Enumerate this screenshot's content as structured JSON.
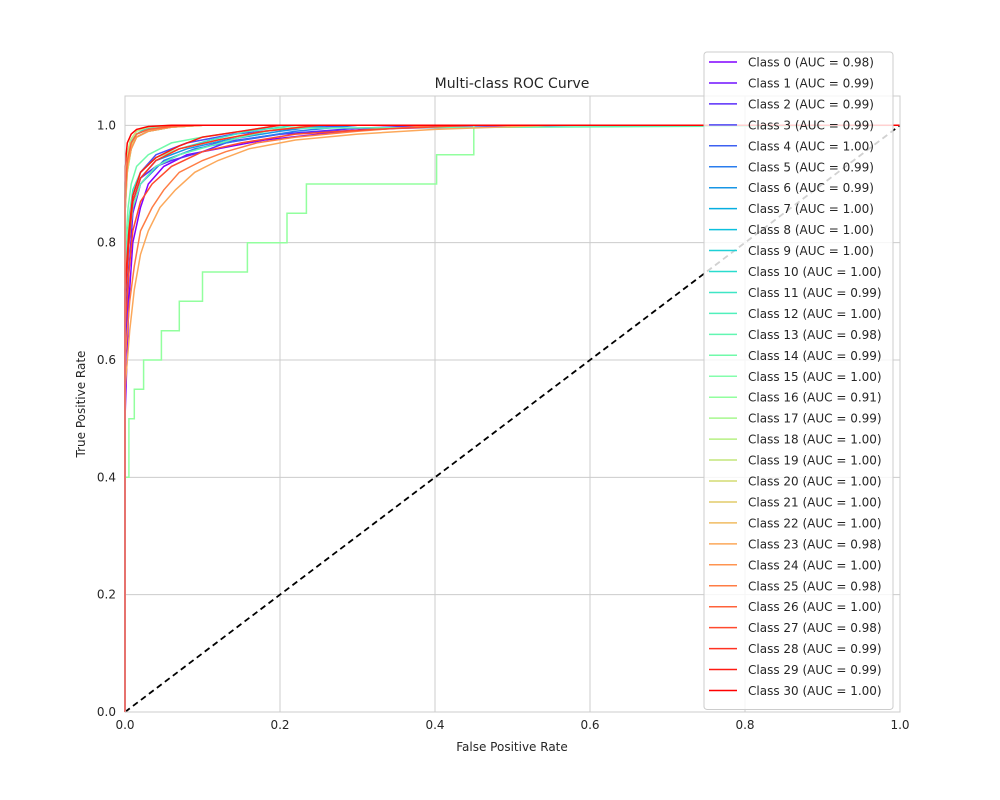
{
  "chart_data": {
    "type": "line",
    "title": "Multi-class ROC Curve",
    "xlabel": "False Positive Rate",
    "ylabel": "True Positive Rate",
    "xlim": [
      0.0,
      1.0
    ],
    "ylim": [
      0.0,
      1.05
    ],
    "xticks": [
      "0.0",
      "0.2",
      "0.4",
      "0.6",
      "0.8",
      "1.0"
    ],
    "yticks": [
      "0.0",
      "0.2",
      "0.4",
      "0.6",
      "0.8",
      "1.0"
    ],
    "grid": true,
    "legend_position": "upper right",
    "diagonal": {
      "x": [
        0,
        1
      ],
      "y": [
        0,
        1
      ],
      "color": "#000000",
      "style": "dashed"
    },
    "series": [
      {
        "name": "Class 0 (AUC = 0.98)",
        "color": "#8000ff",
        "x": [
          0,
          0.0,
          0.005,
          0.01,
          0.02,
          0.03,
          0.05,
          0.08,
          0.12,
          0.18,
          0.25,
          0.32,
          0.45,
          1.0
        ],
        "y": [
          0,
          0.5,
          0.7,
          0.8,
          0.86,
          0.9,
          0.93,
          0.95,
          0.96,
          0.975,
          0.985,
          0.995,
          1.0,
          1.0
        ]
      },
      {
        "name": "Class 1 (AUC = 0.99)",
        "color": "#7010ff",
        "x": [
          0,
          0.0,
          0.005,
          0.01,
          0.02,
          0.04,
          0.07,
          0.12,
          0.2,
          0.35,
          0.58,
          1.0
        ],
        "y": [
          0,
          0.6,
          0.75,
          0.85,
          0.9,
          0.93,
          0.95,
          0.97,
          0.985,
          0.995,
          1.0,
          1.0
        ]
      },
      {
        "name": "Class 2 (AUC = 0.99)",
        "color": "#5a2ef9",
        "x": [
          0,
          0.0,
          0.005,
          0.01,
          0.02,
          0.04,
          0.06,
          0.1,
          0.13,
          0.2,
          0.3,
          0.4,
          1.0
        ],
        "y": [
          0,
          0.65,
          0.8,
          0.87,
          0.91,
          0.93,
          0.94,
          0.955,
          0.97,
          0.985,
          0.995,
          1.0,
          1.0
        ]
      },
      {
        "name": "Class 3 (AUC = 0.99)",
        "color": "#4c4cf6",
        "x": [
          0,
          0.0,
          0.005,
          0.01,
          0.02,
          0.04,
          0.08,
          0.14,
          0.22,
          0.3,
          1.0
        ],
        "y": [
          0,
          0.7,
          0.82,
          0.88,
          0.92,
          0.95,
          0.97,
          0.985,
          0.995,
          1.0,
          1.0
        ]
      },
      {
        "name": "Class 4 (AUC = 1.00)",
        "color": "#3e60f1",
        "x": [
          0,
          0.0,
          0.003,
          0.008,
          0.015,
          0.03,
          0.06,
          0.1,
          1.0
        ],
        "y": [
          0,
          0.85,
          0.93,
          0.96,
          0.98,
          0.99,
          0.997,
          1.0,
          1.0
        ]
      },
      {
        "name": "Class 5 (AUC = 0.99)",
        "color": "#2a7cee",
        "x": [
          0,
          0.0,
          0.005,
          0.01,
          0.02,
          0.05,
          0.09,
          0.15,
          0.22,
          0.3,
          1.0
        ],
        "y": [
          0,
          0.7,
          0.8,
          0.86,
          0.9,
          0.94,
          0.96,
          0.975,
          0.99,
          1.0,
          1.0
        ]
      },
      {
        "name": "Class 6 (AUC = 0.99)",
        "color": "#1896e5",
        "x": [
          0,
          0.0,
          0.005,
          0.01,
          0.02,
          0.04,
          0.08,
          0.13,
          0.2,
          0.26,
          1.0
        ],
        "y": [
          0,
          0.72,
          0.82,
          0.87,
          0.91,
          0.94,
          0.96,
          0.975,
          0.99,
          1.0,
          1.0
        ]
      },
      {
        "name": "Class 7 (AUC = 1.00)",
        "color": "#06aee0",
        "x": [
          0,
          0.0,
          0.003,
          0.008,
          0.015,
          0.03,
          0.06,
          0.1,
          1.0
        ],
        "y": [
          0,
          0.88,
          0.94,
          0.97,
          0.985,
          0.993,
          0.998,
          1.0,
          1.0
        ]
      },
      {
        "name": "Class 8 (AUC = 1.00)",
        "color": "#0cc0dd",
        "x": [
          0,
          0.0,
          0.003,
          0.008,
          0.015,
          0.03,
          0.05,
          0.09,
          1.0
        ],
        "y": [
          0,
          0.86,
          0.93,
          0.965,
          0.98,
          0.99,
          0.997,
          1.0,
          1.0
        ]
      },
      {
        "name": "Class 9 (AUC = 1.00)",
        "color": "#1ed0d6",
        "x": [
          0,
          0.0,
          0.003,
          0.007,
          0.015,
          0.025,
          0.05,
          0.08,
          1.0
        ],
        "y": [
          0,
          0.9,
          0.95,
          0.97,
          0.985,
          0.993,
          0.998,
          1.0,
          1.0
        ]
      },
      {
        "name": "Class 10 (AUC = 1.00)",
        "color": "#2adcce",
        "x": [
          0,
          0.0,
          0.003,
          0.007,
          0.015,
          0.03,
          0.06,
          0.1,
          1.0
        ],
        "y": [
          0,
          0.87,
          0.93,
          0.965,
          0.98,
          0.99,
          0.997,
          1.0,
          1.0
        ]
      },
      {
        "name": "Class 11 (AUC = 0.99)",
        "color": "#3ee6c5",
        "x": [
          0,
          0.0,
          0.005,
          0.01,
          0.02,
          0.04,
          0.07,
          0.11,
          0.16,
          0.22,
          1.0
        ],
        "y": [
          0,
          0.75,
          0.84,
          0.89,
          0.92,
          0.945,
          0.96,
          0.975,
          0.99,
          1.0,
          1.0
        ]
      },
      {
        "name": "Class 12 (AUC = 1.00)",
        "color": "#50f0bc",
        "x": [
          0,
          0.0,
          0.003,
          0.008,
          0.015,
          0.03,
          0.06,
          0.1,
          1.0
        ],
        "y": [
          0,
          0.85,
          0.92,
          0.96,
          0.98,
          0.99,
          0.997,
          1.0,
          1.0
        ]
      },
      {
        "name": "Class 13 (AUC = 0.98)",
        "color": "#62f6b2",
        "x": [
          0,
          0.0,
          0.005,
          0.01,
          0.02,
          0.04,
          0.07,
          0.11,
          0.15,
          0.2,
          1.0
        ],
        "y": [
          0,
          0.7,
          0.8,
          0.86,
          0.9,
          0.93,
          0.95,
          0.965,
          0.98,
          0.995,
          1.0
        ]
      },
      {
        "name": "Class 14 (AUC = 0.99)",
        "color": "#70faaa",
        "x": [
          0,
          0.0,
          0.004,
          0.008,
          0.015,
          0.03,
          0.06,
          0.1,
          0.15,
          0.2,
          1.0
        ],
        "y": [
          0,
          0.78,
          0.86,
          0.9,
          0.93,
          0.95,
          0.97,
          0.98,
          0.99,
          1.0,
          1.0
        ]
      },
      {
        "name": "Class 15 (AUC = 1.00)",
        "color": "#84feac",
        "x": [
          0,
          0.0,
          0.003,
          0.007,
          0.015,
          0.03,
          0.06,
          1.0
        ],
        "y": [
          0,
          0.9,
          0.95,
          0.975,
          0.99,
          0.997,
          1.0,
          1.0
        ]
      },
      {
        "name": "Class 16 (AUC = 0.91)",
        "color": "#92ff9e",
        "x": [
          0,
          0.0,
          0.005,
          0.005,
          0.012,
          0.012,
          0.024,
          0.024,
          0.047,
          0.047,
          0.07,
          0.07,
          0.1,
          0.1,
          0.158,
          0.158,
          0.209,
          0.209,
          0.234,
          0.234,
          0.402,
          0.402,
          0.45,
          0.45,
          1.0
        ],
        "y": [
          0,
          0.4,
          0.4,
          0.5,
          0.5,
          0.55,
          0.55,
          0.6,
          0.6,
          0.65,
          0.65,
          0.7,
          0.7,
          0.75,
          0.75,
          0.8,
          0.8,
          0.85,
          0.85,
          0.9,
          0.9,
          0.95,
          0.95,
          1.0,
          1.0
        ]
      },
      {
        "name": "Class 17 (AUC = 0.99)",
        "color": "#a6f88e",
        "x": [
          0,
          0.0,
          0.005,
          0.01,
          0.02,
          0.04,
          0.07,
          0.12,
          0.18,
          0.24,
          1.0
        ],
        "y": [
          0,
          0.72,
          0.83,
          0.88,
          0.92,
          0.945,
          0.96,
          0.975,
          0.99,
          1.0,
          1.0
        ]
      },
      {
        "name": "Class 18 (AUC = 1.00)",
        "color": "#b6f083",
        "x": [
          0,
          0.0,
          0.003,
          0.008,
          0.015,
          0.03,
          0.06,
          0.1,
          1.0
        ],
        "y": [
          0,
          0.87,
          0.93,
          0.965,
          0.98,
          0.99,
          0.997,
          1.0,
          1.0
        ]
      },
      {
        "name": "Class 19 (AUC = 1.00)",
        "color": "#c4e67c",
        "x": [
          0,
          0.0,
          0.003,
          0.007,
          0.015,
          0.03,
          0.06,
          1.0
        ],
        "y": [
          0,
          0.9,
          0.95,
          0.975,
          0.99,
          0.997,
          1.0,
          1.0
        ]
      },
      {
        "name": "Class 20 (AUC = 1.00)",
        "color": "#d4dc72",
        "x": [
          0,
          0.0,
          0.003,
          0.008,
          0.015,
          0.03,
          0.05,
          0.09,
          1.0
        ],
        "y": [
          0,
          0.86,
          0.93,
          0.965,
          0.98,
          0.99,
          0.997,
          1.0,
          1.0
        ]
      },
      {
        "name": "Class 21 (AUC = 1.00)",
        "color": "#e2cc6a",
        "x": [
          0,
          0.0,
          0.003,
          0.008,
          0.015,
          0.03,
          0.06,
          0.1,
          1.0
        ],
        "y": [
          0,
          0.85,
          0.92,
          0.96,
          0.98,
          0.99,
          0.997,
          1.0,
          1.0
        ]
      },
      {
        "name": "Class 22 (AUC = 1.00)",
        "color": "#f0bc62",
        "x": [
          0,
          0.0,
          0.003,
          0.008,
          0.015,
          0.03,
          0.06,
          0.1,
          1.0
        ],
        "y": [
          0,
          0.88,
          0.94,
          0.97,
          0.985,
          0.993,
          0.998,
          1.0,
          1.0
        ]
      },
      {
        "name": "Class 23 (AUC = 0.98)",
        "color": "#fca85a",
        "x": [
          0,
          0.0,
          0.006,
          0.012,
          0.02,
          0.03,
          0.045,
          0.065,
          0.09,
          0.12,
          0.16,
          0.22,
          0.3,
          0.4,
          0.55,
          1.0
        ],
        "y": [
          0,
          0.55,
          0.65,
          0.72,
          0.78,
          0.82,
          0.86,
          0.89,
          0.92,
          0.94,
          0.96,
          0.975,
          0.985,
          0.993,
          1.0,
          1.0
        ]
      },
      {
        "name": "Class 24 (AUC = 1.00)",
        "color": "#ff9450",
        "x": [
          0,
          0.0,
          0.003,
          0.008,
          0.015,
          0.03,
          0.06,
          0.1,
          1.0
        ],
        "y": [
          0,
          0.86,
          0.93,
          0.96,
          0.98,
          0.99,
          0.997,
          1.0,
          1.0
        ]
      },
      {
        "name": "Class 25 (AUC = 0.98)",
        "color": "#ff7c44",
        "x": [
          0,
          0.0,
          0.006,
          0.012,
          0.02,
          0.035,
          0.05,
          0.07,
          0.1,
          0.13,
          0.17,
          0.22,
          0.3,
          0.4,
          1.0
        ],
        "y": [
          0,
          0.6,
          0.7,
          0.76,
          0.82,
          0.86,
          0.89,
          0.92,
          0.94,
          0.955,
          0.97,
          0.98,
          0.99,
          1.0,
          1.0
        ]
      },
      {
        "name": "Class 26 (AUC = 1.00)",
        "color": "#ff623a",
        "x": [
          0,
          0.0,
          0.003,
          0.008,
          0.015,
          0.03,
          0.06,
          0.1,
          1.0
        ],
        "y": [
          0,
          0.88,
          0.94,
          0.97,
          0.985,
          0.993,
          0.998,
          1.0,
          1.0
        ]
      },
      {
        "name": "Class 27 (AUC = 0.98)",
        "color": "#ff4a2e",
        "x": [
          0,
          0.0,
          0.005,
          0.01,
          0.02,
          0.035,
          0.06,
          0.1,
          0.15,
          0.22,
          0.32,
          0.45,
          1.0
        ],
        "y": [
          0,
          0.65,
          0.75,
          0.82,
          0.87,
          0.9,
          0.93,
          0.955,
          0.97,
          0.985,
          0.993,
          1.0,
          1.0
        ]
      },
      {
        "name": "Class 28 (AUC = 0.99)",
        "color": "#ff3222",
        "x": [
          0,
          0.0,
          0.005,
          0.01,
          0.02,
          0.04,
          0.07,
          0.12,
          0.18,
          0.25,
          1.0
        ],
        "y": [
          0,
          0.7,
          0.8,
          0.87,
          0.91,
          0.94,
          0.96,
          0.975,
          0.99,
          1.0,
          1.0
        ]
      },
      {
        "name": "Class 29 (AUC = 0.99)",
        "color": "#ff1a12",
        "x": [
          0,
          0.0,
          0.005,
          0.01,
          0.02,
          0.04,
          0.07,
          0.1,
          0.15,
          0.2,
          1.0
        ],
        "y": [
          0,
          0.72,
          0.82,
          0.88,
          0.92,
          0.945,
          0.965,
          0.98,
          0.99,
          1.0,
          1.0
        ]
      },
      {
        "name": "Class 30 (AUC = 1.00)",
        "color": "#ff0000",
        "x": [
          0,
          0.0,
          0.003,
          0.008,
          0.015,
          0.03,
          0.06,
          1.0
        ],
        "y": [
          0,
          0.93,
          0.97,
          0.985,
          0.993,
          0.998,
          1.0,
          1.0
        ]
      }
    ]
  }
}
